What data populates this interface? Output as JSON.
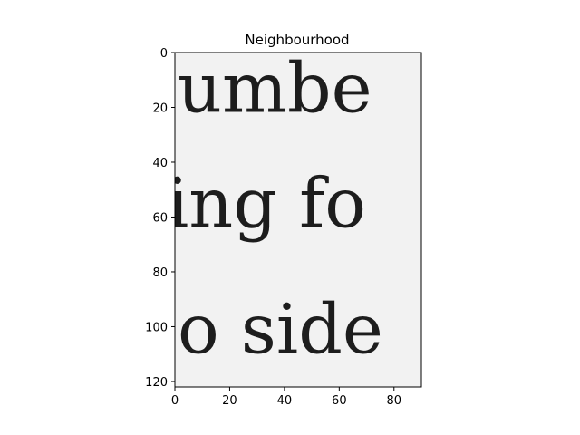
{
  "chart_data": {
    "type": "image",
    "title": "Neighbourhood",
    "xlim": [
      0,
      90
    ],
    "ylim": [
      122,
      0
    ],
    "x_ticks": [
      0,
      20,
      40,
      60,
      80
    ],
    "y_ticks": [
      0,
      20,
      40,
      60,
      80,
      100,
      120
    ],
    "x_tick_labels": [
      "0",
      "20",
      "40",
      "60",
      "80"
    ],
    "y_tick_labels": [
      "0",
      "20",
      "40",
      "60",
      "80",
      "100",
      "120"
    ],
    "grid": false,
    "colormap": "gray",
    "image_text_lines": [
      {
        "text": "umbe",
        "row": 13
      },
      {
        "text": "ing fo",
        "row": 55
      },
      {
        "text": "o side",
        "row": 101
      }
    ]
  }
}
